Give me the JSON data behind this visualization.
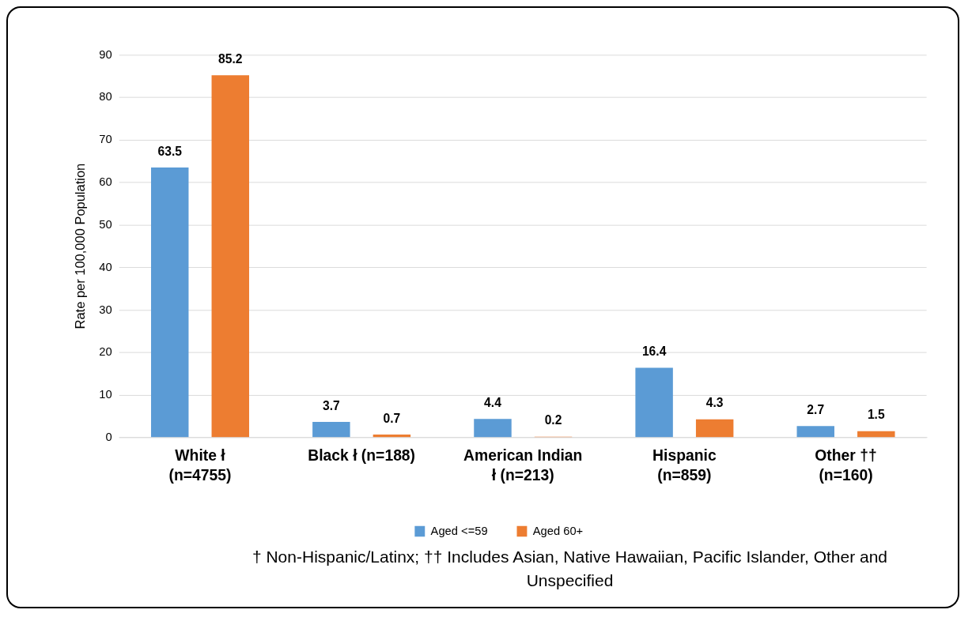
{
  "chart_data": {
    "type": "bar",
    "ylabel": "Rate per 100,000 Population",
    "categories": [
      "White ł (n=4755)",
      "Black ł (n=188)",
      "American Indian ł (n=213)",
      "Hispanic (n=859)",
      "Other †† (n=160)"
    ],
    "series": [
      {
        "name": "Aged <=59",
        "color": "#5b9bd5",
        "values": [
          63.5,
          3.7,
          4.4,
          16.4,
          2.7
        ]
      },
      {
        "name": "Aged 60+",
        "color": "#ed7d31",
        "values": [
          85.2,
          0.7,
          0.2,
          4.3,
          1.5
        ]
      }
    ],
    "ylim": [
      0,
      90
    ],
    "yticks": [
      0,
      10,
      20,
      30,
      40,
      50,
      60,
      70,
      80,
      90
    ],
    "grid": "y",
    "legend": "bottom",
    "data_labels": true,
    "annotations": [
      "† Non-Hispanic/Latinx; †† Includes Asian, Native Hawaiian, Pacific Islander, Other and Unspecified"
    ]
  }
}
